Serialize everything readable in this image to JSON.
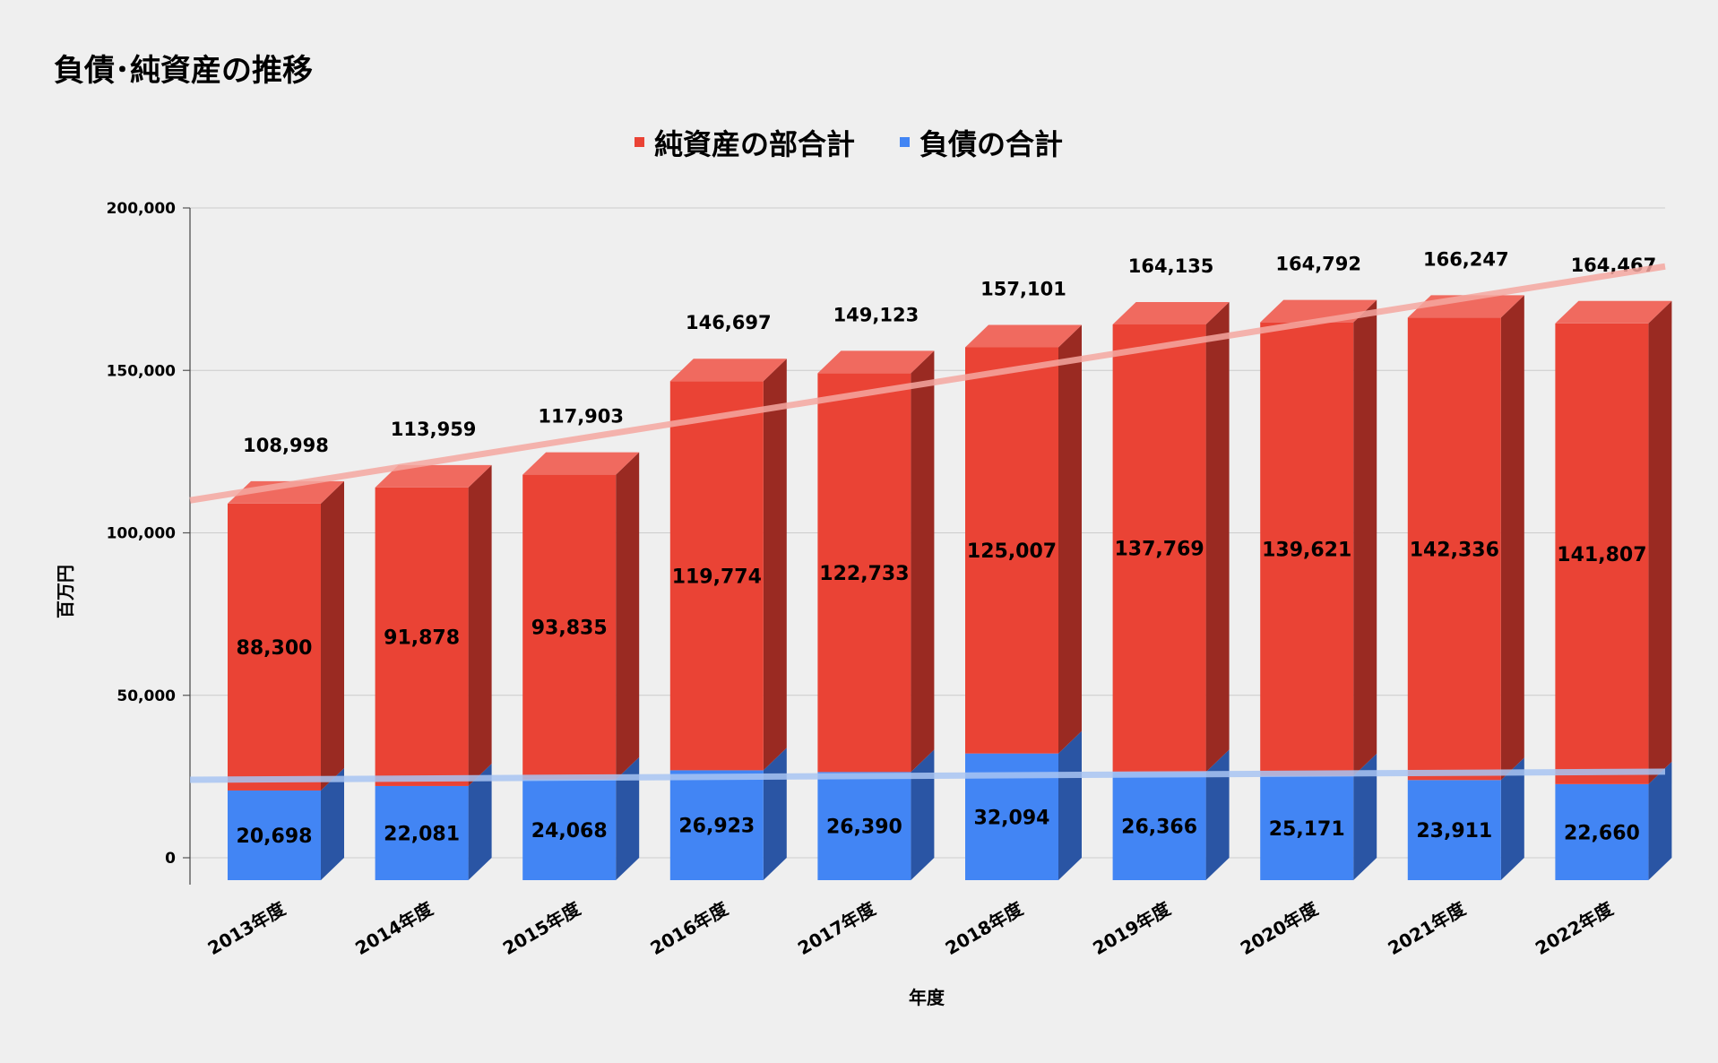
{
  "chart_data": {
    "type": "bar",
    "stacked": true,
    "style": "3d",
    "title": "負債･純資産の推移",
    "xlabel": "年度",
    "ylabel": "百万円",
    "ylim": [
      0,
      200000
    ],
    "yticks": [
      "0",
      "50,000",
      "100,000",
      "150,000",
      "200,000"
    ],
    "grid": true,
    "legend_position": "top",
    "categories": [
      "2013年度",
      "2014年度",
      "2015年度",
      "2016年度",
      "2017年度",
      "2018年度",
      "2019年度",
      "2020年度",
      "2021年度",
      "2022年度"
    ],
    "series": [
      {
        "name": "負債の合計",
        "color": "#4285f4",
        "values": [
          20698,
          22081,
          24068,
          26923,
          26390,
          32094,
          26366,
          25171,
          23911,
          22660
        ],
        "labels": [
          "20,698",
          "22,081",
          "24,068",
          "26,923",
          "26,390",
          "32,094",
          "26,366",
          "25,171",
          "23,911",
          "22,660"
        ]
      },
      {
        "name": "純資産の部合計",
        "color": "#ea4335",
        "values": [
          88300,
          91878,
          93835,
          119774,
          122733,
          125007,
          137769,
          139621,
          142336,
          141807
        ],
        "labels": [
          "88,300",
          "91,878",
          "93,835",
          "119,774",
          "122,733",
          "125,007",
          "137,769",
          "139,621",
          "142,336",
          "141,807"
        ]
      }
    ],
    "legend_order": [
      "純資産の部合計",
      "負債の合計"
    ],
    "totals": [
      108998,
      113959,
      117903,
      146697,
      149123,
      157101,
      164135,
      164792,
      166247,
      164467
    ],
    "total_labels": [
      "108,998",
      "113,959",
      "117,903",
      "146,697",
      "149,123",
      "157,101",
      "164,135",
      "164,792",
      "166,247",
      "164,467"
    ],
    "trendlines": [
      {
        "series": "純資産の部合計",
        "color": "#f4a7a0",
        "start_value": 110000,
        "end_value": 182000
      },
      {
        "series": "負債の合計",
        "color": "#a8c4f2",
        "start_value": 24000,
        "end_value": 26500
      }
    ]
  }
}
